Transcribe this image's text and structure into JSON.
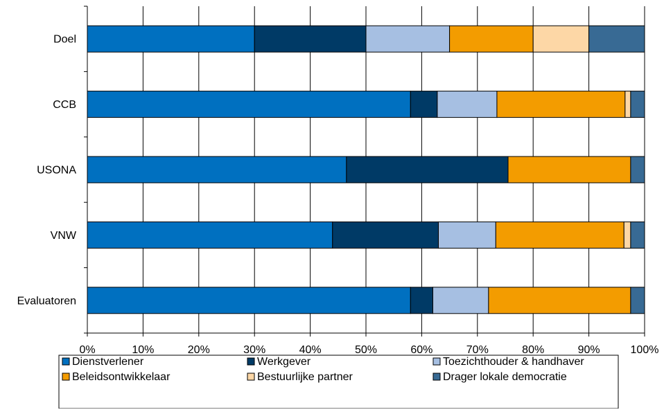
{
  "chart_data": {
    "type": "bar",
    "orientation": "horizontal",
    "stacked": true,
    "percent_stacked": true,
    "categories": [
      "Doel",
      "CCB",
      "USONA",
      "VNW",
      "Evaluatoren"
    ],
    "series": [
      {
        "name": "Dienstverlener",
        "color": "#0070c0",
        "values": [
          30,
          58,
          46.5,
          44,
          58
        ]
      },
      {
        "name": "Werkgever",
        "color": "#003a66",
        "values": [
          20,
          4.8,
          29,
          19,
          4
        ]
      },
      {
        "name": "Toezichthouder & handhaver",
        "color": "#a6bfe2",
        "values": [
          15,
          10.7,
          0,
          10.3,
          10
        ]
      },
      {
        "name": "Beleidsontwikkelaar",
        "color": "#f39c00",
        "values": [
          15,
          23,
          22,
          23,
          25.5
        ]
      },
      {
        "name": "Bestuurlijke partner",
        "color": "#fdd7a6",
        "values": [
          10,
          1,
          0,
          1.2,
          0
        ]
      },
      {
        "name": "Drager lokale democratie",
        "color": "#386a94",
        "values": [
          10,
          2.5,
          2.5,
          2.5,
          2.5
        ]
      }
    ],
    "x_ticks": [
      "0%",
      "10%",
      "20%",
      "30%",
      "40%",
      "50%",
      "60%",
      "70%",
      "80%",
      "90%",
      "100%"
    ],
    "xlim": [
      0,
      100
    ],
    "grid": true,
    "legend_position": "bottom"
  }
}
